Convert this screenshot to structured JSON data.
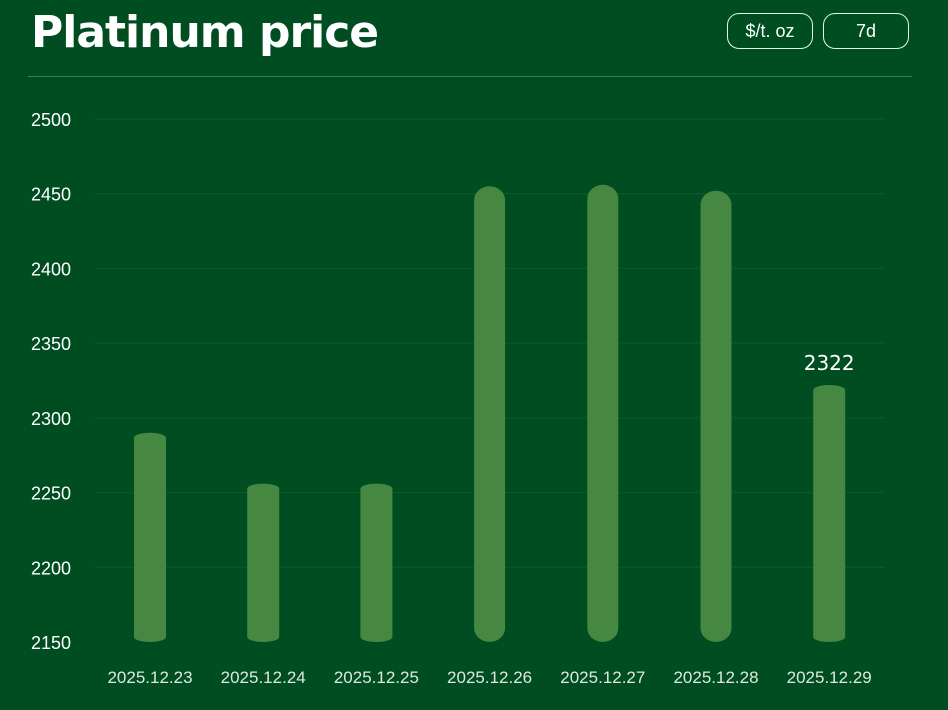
{
  "header": {
    "title": "Platinum price",
    "unit_label": "$/t. oz",
    "range_label": "7d"
  },
  "colors": {
    "background": "#004d22",
    "bar": "#468842",
    "grid": "#0b5a2c",
    "divider": "#3e7a55"
  },
  "chart_data": {
    "type": "bar",
    "title": "Platinum price",
    "xlabel": "",
    "ylabel": "",
    "categories": [
      "2025.12.23",
      "2025.12.24",
      "2025.12.25",
      "2025.12.26",
      "2025.12.27",
      "2025.12.28",
      "2025.12.29"
    ],
    "values": [
      2290,
      2256,
      2256,
      2455,
      2456,
      2452,
      2322
    ],
    "ylim": [
      2150,
      2500
    ],
    "yticks": [
      2150,
      2200,
      2250,
      2300,
      2350,
      2400,
      2450,
      2500
    ],
    "grid": true,
    "legend": "none",
    "data_labels": [
      {
        "category": "2025.12.29",
        "text": "2322"
      }
    ]
  }
}
